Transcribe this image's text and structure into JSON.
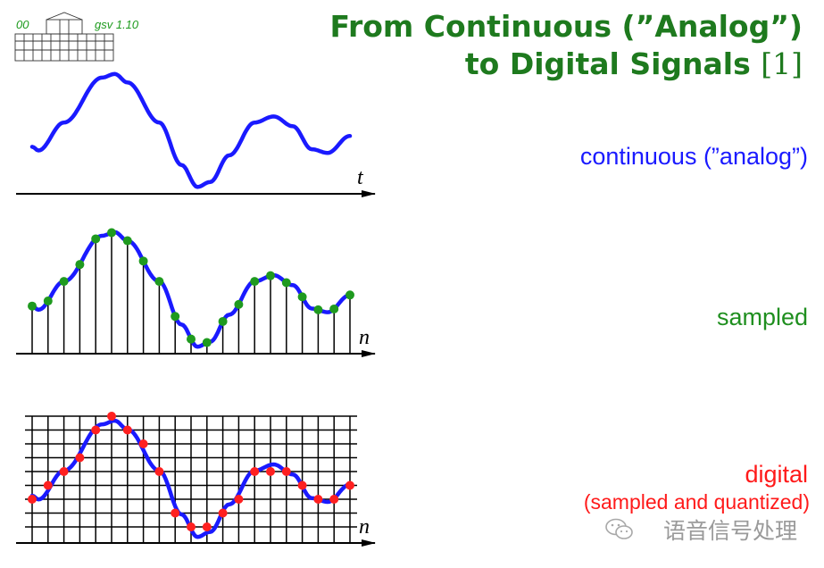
{
  "title": {
    "line1": "From Continuous (”Analog”)",
    "line2": "to Digital Signals",
    "ref": "[1]"
  },
  "logo": {
    "left_text": "00",
    "right_text": "gsv  1.10",
    "icon": "building-icon"
  },
  "labels": {
    "continuous": "continuous (”analog”)",
    "sampled": "sampled",
    "digital": "digital",
    "digital_sub": "(sampled and quantized)"
  },
  "axes": {
    "continuous_axis": "t",
    "sampled_axis": "n",
    "digital_axis": "n"
  },
  "watermark": {
    "text": "语音信号处理",
    "icon": "wechat-icon"
  },
  "colors": {
    "title": "#1e7a1e",
    "continuous": "#1a1aff",
    "sampled": "#1f8f1f",
    "digital": "#ff1a1a"
  }
}
